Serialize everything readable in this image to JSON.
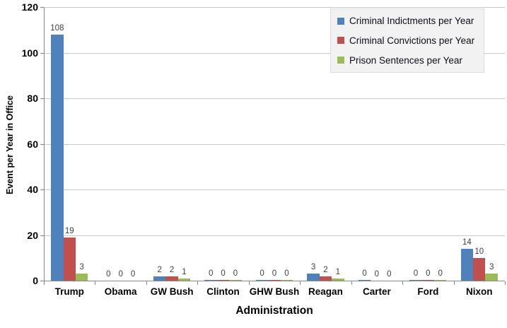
{
  "chart_data": {
    "type": "bar",
    "title": "",
    "xlabel": "Administration",
    "ylabel": "Event per Year in Office",
    "ylim": [
      0,
      120
    ],
    "ytick_step": 20,
    "grid": true,
    "legend_position": "top-right",
    "categories": [
      "Trump",
      "Obama",
      "GW Bush",
      "Clinton",
      "GHW Bush",
      "Reagan",
      "Carter",
      "Ford",
      "Nixon"
    ],
    "series": [
      {
        "name": "Criminal Indictments per Year",
        "color": "#4f81bd",
        "values": [
          108,
          0,
          2,
          0.3,
          0.3,
          3,
          0.3,
          0.3,
          14
        ],
        "labels": [
          "108",
          "0",
          "2",
          "0",
          "0",
          "3",
          "0",
          "0",
          "14"
        ]
      },
      {
        "name": "Criminal Convictions per Year",
        "color": "#c0504d",
        "values": [
          19,
          0,
          2,
          0.3,
          0.3,
          2,
          0,
          0.3,
          10
        ],
        "labels": [
          "19",
          "0",
          "2",
          "0",
          "0",
          "2",
          "0",
          "0",
          "10"
        ]
      },
      {
        "name": "Prison Sentences per Year",
        "color": "#9bbb59",
        "values": [
          3,
          0,
          1,
          0.3,
          0.3,
          1,
          0,
          0.3,
          3
        ],
        "labels": [
          "3",
          "0",
          "1",
          "0",
          "0",
          "1",
          "0",
          "0",
          "3"
        ]
      }
    ]
  },
  "colors": {
    "indictments_blue": "#4f81bd",
    "convictions_red": "#c0504d",
    "sentences_green": "#9bbb59",
    "gridline": "#c9c9c9",
    "axis": "#898989",
    "data_label": "#404040",
    "legend_background": "#f2f2f2"
  }
}
